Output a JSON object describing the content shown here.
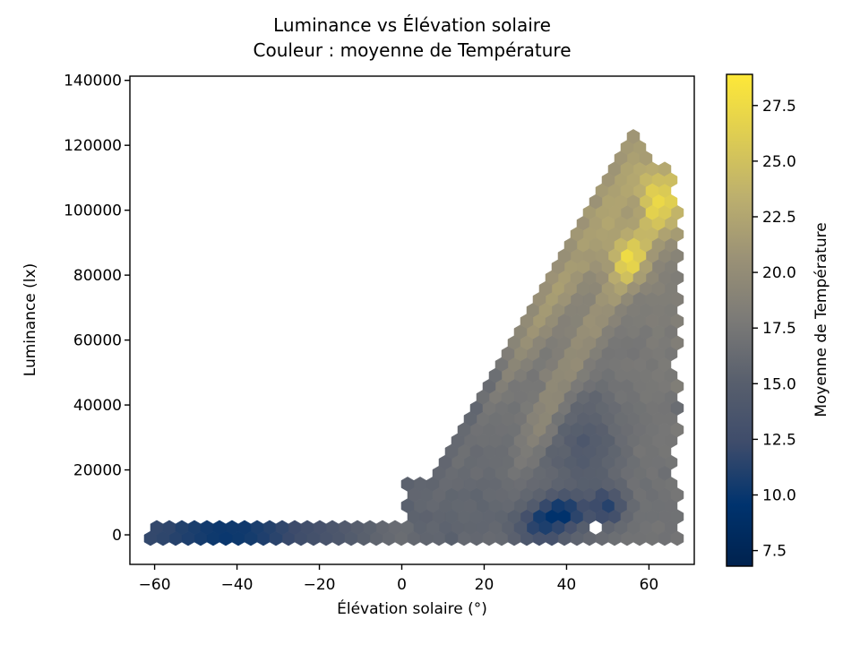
{
  "title": {
    "line1": "Luminance vs Élévation solaire",
    "line2": "Couleur : moyenne de Température"
  },
  "axes": {
    "xlabel": "Élévation solaire (°)",
    "ylabel": "Luminance (lx)",
    "x_ticks": [
      -60,
      -40,
      -20,
      0,
      20,
      40,
      60
    ],
    "y_ticks": [
      0,
      20000,
      40000,
      60000,
      80000,
      100000,
      120000,
      140000
    ],
    "xlim": [
      -66,
      71
    ],
    "ylim": [
      -9100,
      141300
    ]
  },
  "colorbar": {
    "label": "Moyenne de Température",
    "ticks": [
      7.5,
      10.0,
      12.5,
      15.0,
      17.5,
      20.0,
      22.5,
      25.0,
      27.5
    ],
    "vmin": 6.8,
    "vmax": 28.9,
    "colormap": "cividis",
    "stops": [
      {
        "t": 0.0,
        "c": "#00224e"
      },
      {
        "t": 0.125,
        "c": "#00336e"
      },
      {
        "t": 0.25,
        "c": "#3e4c6b"
      },
      {
        "t": 0.375,
        "c": "#585f6d"
      },
      {
        "t": 0.5,
        "c": "#7b7a77"
      },
      {
        "t": 0.625,
        "c": "#9a9176"
      },
      {
        "t": 0.75,
        "c": "#bcaf6e"
      },
      {
        "t": 0.875,
        "c": "#decd52"
      },
      {
        "t": 1.0,
        "c": "#fee838"
      }
    ],
    "outline_color": "#000000"
  },
  "chart_data": {
    "type": "hexbin",
    "title": "Luminance vs Élévation solaire — Couleur : moyenne de Température",
    "xlabel": "Élévation solaire (°)",
    "ylabel": "Luminance (lx)",
    "color_label": "Moyenne de Température",
    "x_data_range": [
      -61,
      65.5
    ],
    "y_data_range": [
      0,
      121500
    ],
    "color_range": [
      6.8,
      28.9
    ],
    "description": "Night band: luminance ~0 for elevations -61..0, coldest (~9-11°C) around -55..-35°, warming to ~16-17°C near 0°. Daytime wedge: luminance rises up to ~2150 lx per degree, peaking ~120000 lx near 60° elevation. Warm yellow streaks (24-29°C) along the upper envelope and upper-right, hottest cell ~28.5°C at (55°, 85000 lx). Cold pockets (8-12°C) at low luminance for 30-52° elevation. One empty bin near (47.6°, 2600 lx).",
    "generator": {
      "seed": 20,
      "night": {
        "n": 3500,
        "e_min": -61,
        "e_max": 2,
        "y_sigma": 350,
        "base": 15.0,
        "tanh_amp": 2.8,
        "tanh_e0": -10,
        "tanh_scale": 16,
        "dip_amp": -2.2,
        "dip_e0": -42,
        "dip_scale": 14,
        "noise": 0.5
      },
      "daylow": {
        "n": 3000,
        "e_min": 2,
        "e_max": 65.5,
        "y_max": 15000,
        "base": 15.8,
        "slope": 1.3,
        "e_mid": 10,
        "e_scale": 40,
        "noise": 0.9
      },
      "wedge": {
        "n": 9500,
        "e_min": 3,
        "e_max": 65.5,
        "slope": 2150,
        "cap": 121500,
        "taper_start": 56,
        "taper_rate": 1300,
        "r_pow": 0.85,
        "base": 15.0,
        "r_amp": 2.0,
        "e_amp": 1.8,
        "e_start": 10,
        "e_span": 50,
        "noise": 0.8,
        "band": {
          "amp": 4.0,
          "r0": 0.92,
          "sr": 0.11,
          "e_fade_start": 18,
          "e_fade_span": 14
        },
        "diag": {
          "amp": 3.2,
          "slope": 2214,
          "intercept": -38400,
          "sigma": 9500,
          "e_fade_start": 24,
          "e_fade_span": 10
        },
        "edgecool": {
          "amp": -1.8,
          "r0": 1.0,
          "sr": 0.07,
          "e_hi": 36,
          "fade": 10
        }
      },
      "features": [
        {
          "amp": 7.0,
          "e0": 55,
          "se": 4.5,
          "y0": 85000,
          "sy": 8000
        },
        {
          "amp": 2.6,
          "e0": 61,
          "se": 2.8,
          "y0": 103000,
          "sy": 11000
        },
        {
          "amp": -2.4,
          "e0": 45,
          "se": 8,
          "y0": 28000,
          "sy": 16000
        },
        {
          "amp": -7.0,
          "e0": 39,
          "se": 6,
          "y0": 6500,
          "sy": 5200
        },
        {
          "amp": -5.5,
          "e0": 50,
          "se": 4,
          "y0": 8500,
          "sy": 5000
        },
        {
          "amp": -4.5,
          "e0": 33,
          "se": 5,
          "y0": 3000,
          "sy": 4000
        }
      ],
      "hole": {
        "e": 47.6,
        "y": 2600
      },
      "mincnt": 1
    }
  }
}
